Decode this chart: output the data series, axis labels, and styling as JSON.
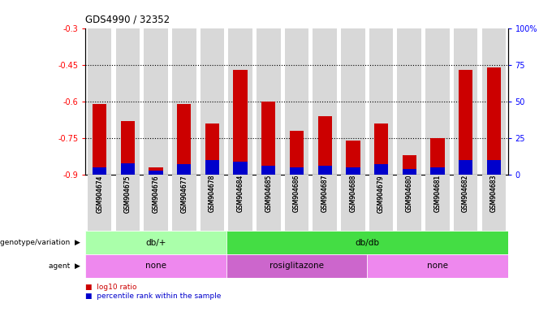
{
  "title": "GDS4990 / 32352",
  "samples": [
    "GSM904674",
    "GSM904675",
    "GSM904676",
    "GSM904677",
    "GSM904678",
    "GSM904684",
    "GSM904685",
    "GSM904686",
    "GSM904687",
    "GSM904688",
    "GSM904679",
    "GSM904680",
    "GSM904681",
    "GSM904682",
    "GSM904683"
  ],
  "log10_ratio": [
    -0.61,
    -0.68,
    -0.87,
    -0.61,
    -0.69,
    -0.47,
    -0.6,
    -0.72,
    -0.66,
    -0.76,
    -0.69,
    -0.82,
    -0.75,
    -0.47,
    -0.46
  ],
  "percentile_rank": [
    5,
    8,
    3,
    7,
    10,
    9,
    6,
    5,
    6,
    5,
    7,
    4,
    5,
    10,
    10
  ],
  "bar_bottom": -0.9,
  "ylim_left": [
    -0.9,
    -0.3
  ],
  "ylim_right": [
    0,
    100
  ],
  "yticks_left": [
    -0.9,
    -0.75,
    -0.6,
    -0.45,
    -0.3
  ],
  "ytick_labels_left": [
    "-0.9",
    "-0.75",
    "-0.6",
    "-0.45",
    "-0.3"
  ],
  "yticks_right": [
    0,
    25,
    50,
    75,
    100
  ],
  "ytick_labels_right": [
    "0",
    "25",
    "50",
    "75",
    "100%"
  ],
  "hlines": [
    -0.75,
    -0.6,
    -0.45
  ],
  "bar_color": "#cc0000",
  "percentile_color": "#0000cc",
  "genotype_groups": [
    {
      "label": "db/+",
      "start": 0,
      "end": 5,
      "color": "#aaffaa"
    },
    {
      "label": "db/db",
      "start": 5,
      "end": 15,
      "color": "#44dd44"
    }
  ],
  "agent_groups": [
    {
      "label": "none",
      "start": 0,
      "end": 5,
      "color": "#ee88ee"
    },
    {
      "label": "rosiglitazone",
      "start": 5,
      "end": 10,
      "color": "#cc66cc"
    },
    {
      "label": "none",
      "start": 10,
      "end": 15,
      "color": "#ee88ee"
    }
  ],
  "genotype_label": "genotype/variation",
  "agent_label": "agent",
  "legend_items": [
    {
      "label": "log10 ratio",
      "color": "#cc0000"
    },
    {
      "label": "percentile rank within the sample",
      "color": "#0000cc"
    }
  ],
  "background_color": "#ffffff",
  "bar_bg_color": "#d8d8d8"
}
